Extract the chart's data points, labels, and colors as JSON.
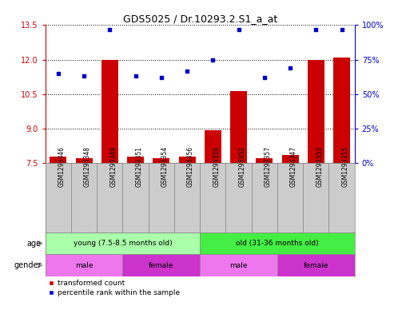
{
  "title": "GDS5025 / Dr.10293.2.S1_a_at",
  "samples": [
    "GSM1293346",
    "GSM1293348",
    "GSM1293349",
    "GSM1293351",
    "GSM1293354",
    "GSM1293356",
    "GSM1293350",
    "GSM1293352",
    "GSM1293357",
    "GSM1293347",
    "GSM1293353",
    "GSM1293355"
  ],
  "transformed_count": [
    7.8,
    7.72,
    12.0,
    7.8,
    7.72,
    7.8,
    8.95,
    10.65,
    7.72,
    7.85,
    12.0,
    12.1
  ],
  "percentile_rank": [
    65,
    63,
    97,
    63,
    62,
    67,
    75,
    97,
    62,
    69,
    97,
    97
  ],
  "ylim_left": [
    7.5,
    13.5
  ],
  "ylim_right": [
    0,
    100
  ],
  "yticks_left": [
    7.5,
    9.0,
    10.5,
    12.0,
    13.5
  ],
  "yticks_right": [
    0,
    25,
    50,
    75,
    100
  ],
  "bar_color": "#cc0000",
  "dot_color": "#0000cc",
  "age_groups": [
    {
      "label": "young (7.5-8.5 months old)",
      "start": 0,
      "end": 6,
      "color": "#aaffaa"
    },
    {
      "label": "old (31-36 months old)",
      "start": 6,
      "end": 12,
      "color": "#44ee44"
    }
  ],
  "gender_groups": [
    {
      "label": "male",
      "start": 0,
      "end": 3,
      "color": "#ee77ee"
    },
    {
      "label": "female",
      "start": 3,
      "end": 6,
      "color": "#cc33cc"
    },
    {
      "label": "male",
      "start": 6,
      "end": 9,
      "color": "#ee77ee"
    },
    {
      "label": "female",
      "start": 9,
      "end": 12,
      "color": "#cc33cc"
    }
  ],
  "left_axis_color": "#cc0000",
  "right_axis_color": "#0000cc",
  "sample_label_bg": "#cccccc",
  "sample_label_border": "#888888",
  "bar_width": 0.65
}
